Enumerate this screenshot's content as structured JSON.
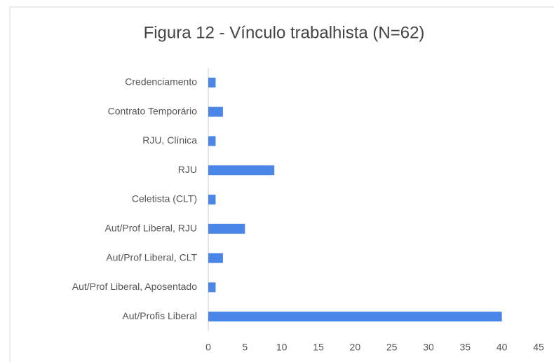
{
  "chart_data": {
    "type": "bar",
    "orientation": "horizontal",
    "title": "Figura 12 - Vínculo trabalhista (N=62)",
    "categories": [
      "Credenciamento",
      "Contrato Temporário",
      "RJU, Clínica",
      "RJU",
      "Celetista (CLT)",
      "Aut/Prof Liberal, RJU",
      "Aut/Prof Liberal, CLT",
      "Aut/Prof Liberal, Aposentado",
      "Aut/Profis Liberal"
    ],
    "values": [
      1,
      2,
      1,
      9,
      1,
      5,
      2,
      1,
      40
    ],
    "color": "#4a86e8",
    "xlim": [
      0,
      45
    ],
    "xticks": [
      0,
      5,
      10,
      15,
      20,
      25,
      30,
      35,
      40,
      45
    ],
    "grid": false
  }
}
